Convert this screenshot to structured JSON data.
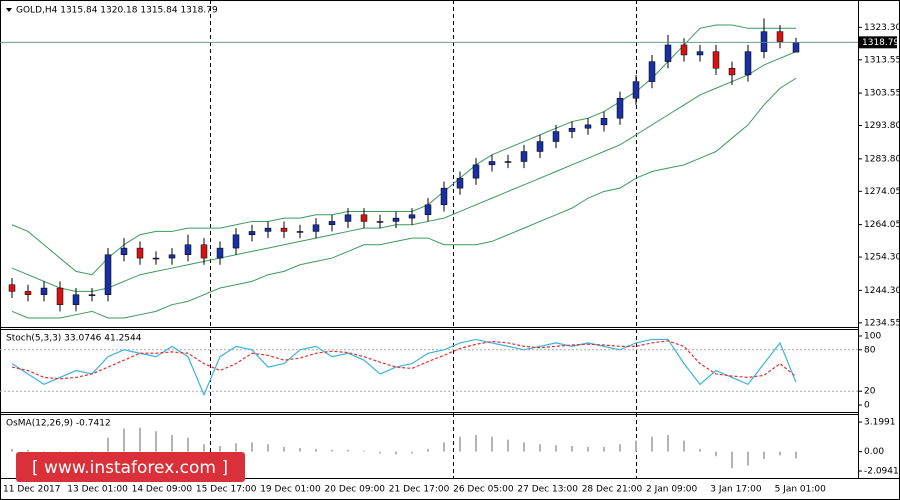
{
  "chart_data": [
    {
      "type": "candlestick",
      "title": "GOLD,H4  1315.84 1320.18 1315.84 1318.79",
      "open": [
        1246,
        1244,
        1243,
        1245,
        1240,
        1243,
        1243,
        1255,
        1257,
        1254,
        1254,
        1255,
        1258,
        1254,
        1257,
        1261,
        1262,
        1263,
        1262,
        1262,
        1264,
        1265,
        1267,
        1265,
        1265,
        1266,
        1267,
        1270,
        1275,
        1278,
        1282,
        1283,
        1283,
        1286,
        1289,
        1292,
        1293,
        1294,
        1296,
        1302,
        1307,
        1313,
        1318,
        1315,
        1316,
        1311,
        1309,
        1316,
        1322,
        1315.84
      ],
      "high": [
        1248,
        1246,
        1247,
        1247,
        1245,
        1245,
        1257,
        1260,
        1259,
        1256,
        1257,
        1261,
        1260,
        1259,
        1263,
        1264,
        1265,
        1265,
        1264,
        1266,
        1267,
        1269,
        1269,
        1267,
        1268,
        1269,
        1272,
        1277,
        1280,
        1284,
        1285,
        1285,
        1288,
        1291,
        1294,
        1295,
        1296,
        1298,
        1304,
        1309,
        1315,
        1321,
        1320,
        1318,
        1318,
        1313,
        1318,
        1326,
        1324,
        1320.18
      ],
      "low": [
        1242,
        1241,
        1241,
        1238,
        1238,
        1241,
        1241,
        1253,
        1252,
        1252,
        1252,
        1253,
        1252,
        1252,
        1255,
        1259,
        1260,
        1260,
        1260,
        1260,
        1262,
        1263,
        1263,
        1263,
        1263,
        1264,
        1265,
        1268,
        1273,
        1276,
        1280,
        1281,
        1281,
        1284,
        1287,
        1290,
        1291,
        1292,
        1294,
        1300,
        1305,
        1311,
        1313,
        1313,
        1309,
        1306,
        1307,
        1314,
        1317,
        1315.84
      ],
      "close": [
        1244,
        1243,
        1245,
        1240,
        1243,
        1243,
        1255,
        1257,
        1254,
        1254,
        1255,
        1258,
        1254,
        1257,
        1261,
        1262,
        1263,
        1262,
        1262,
        1264,
        1265,
        1267,
        1265,
        1265,
        1266,
        1267,
        1270,
        1275,
        1278,
        1282,
        1283,
        1283,
        1286,
        1289,
        1292,
        1293,
        1294,
        1296,
        1302,
        1307,
        1313,
        1318,
        1315,
        1316,
        1311,
        1309,
        1316,
        1322,
        1319,
        1318.79
      ],
      "up_color": "#1a2fa0",
      "down_color": "#d41414",
      "bands": {
        "color": "#3c9a5c",
        "upper": [
          1264,
          1262,
          1258,
          1254,
          1250,
          1249,
          1254,
          1258,
          1261,
          1262,
          1262,
          1263,
          1263,
          1263,
          1264,
          1265,
          1265,
          1266,
          1266,
          1267,
          1267,
          1268,
          1268,
          1268,
          1268,
          1268,
          1270,
          1274,
          1278,
          1282,
          1285,
          1287,
          1289,
          1291,
          1293,
          1295,
          1296,
          1298,
          1301,
          1304,
          1308,
          1313,
          1318,
          1323,
          1324,
          1324,
          1323,
          1323,
          1323,
          1323
        ],
        "middle": [
          1251,
          1249,
          1247,
          1245,
          1244,
          1244,
          1245,
          1247,
          1249,
          1250,
          1251,
          1252,
          1253,
          1254,
          1255,
          1256,
          1257,
          1258,
          1259,
          1260,
          1261,
          1262,
          1263,
          1263,
          1264,
          1264,
          1265,
          1266,
          1268,
          1270,
          1272,
          1274,
          1276,
          1278,
          1280,
          1282,
          1284,
          1286,
          1288,
          1291,
          1294,
          1297,
          1300,
          1303,
          1305,
          1307,
          1309,
          1312,
          1314,
          1316
        ],
        "lower": [
          1238,
          1236,
          1236,
          1236,
          1237,
          1238,
          1236,
          1236,
          1237,
          1238,
          1240,
          1241,
          1243,
          1245,
          1246,
          1247,
          1249,
          1250,
          1252,
          1253,
          1254,
          1256,
          1258,
          1258,
          1259,
          1260,
          1260,
          1258,
          1258,
          1258,
          1259,
          1261,
          1263,
          1265,
          1267,
          1269,
          1272,
          1274,
          1275,
          1278,
          1280,
          1281,
          1282,
          1284,
          1286,
          1290,
          1294,
          1300,
          1305,
          1308
        ]
      },
      "current_price": 1318.79,
      "ylim": [
        1233.3,
        1330.0
      ],
      "yticks": [
        {
          "value": 1323.3,
          "label": "1323.30"
        },
        1313.55,
        1303.55,
        {
          "value": 1293.8,
          "label": "1293.80"
        },
        {
          "value": 1283.8,
          "label": "1283.80"
        },
        1274.05,
        1264.05,
        {
          "value": 1254.3,
          "label": "1254.30"
        },
        {
          "value": 1244.3,
          "label": "1244.30"
        },
        1234.55
      ]
    },
    {
      "type": "line",
      "title": "Stoch(5,3,3) 33.0746 41.2544",
      "series": [
        {
          "color": "#3cb4dc",
          "dashed": false,
          "values": [
            60,
            45,
            30,
            40,
            50,
            45,
            70,
            80,
            75,
            70,
            85,
            70,
            15,
            70,
            85,
            80,
            55,
            60,
            80,
            85,
            70,
            75,
            65,
            45,
            55,
            60,
            75,
            80,
            90,
            95,
            90,
            85,
            80,
            85,
            90,
            85,
            90,
            85,
            80,
            90,
            95,
            95,
            60,
            30,
            50,
            40,
            30,
            60,
            90,
            33.0746
          ]
        },
        {
          "color": "#e03030",
          "dashed": true,
          "values": [
            55,
            50,
            40,
            38,
            40,
            45,
            55,
            65,
            75,
            75,
            77,
            75,
            60,
            50,
            60,
            75,
            72,
            65,
            68,
            75,
            78,
            76,
            70,
            62,
            55,
            53,
            63,
            72,
            82,
            88,
            92,
            90,
            85,
            83,
            85,
            87,
            88,
            87,
            85,
            85,
            90,
            93,
            85,
            60,
            45,
            42,
            40,
            43,
            60,
            41.2544
          ]
        }
      ],
      "ylim": [
        -10.1,
        108.7
      ],
      "yticks": [
        100,
        80,
        20,
        0
      ],
      "levels": [
        80,
        20
      ]
    },
    {
      "type": "bar",
      "title": "OsMA(12,26,9) -0.7412",
      "color": "#b4b4b4",
      "values": [
        0.3,
        0.2,
        -0.3,
        -0.5,
        -0.4,
        -0.2,
        1.5,
        2.5,
        2.6,
        2.2,
        1.8,
        1.5,
        0.8,
        0.6,
        0.9,
        1.0,
        0.8,
        0.5,
        0.4,
        0.3,
        0.2,
        0.2,
        0.1,
        -0.2,
        -0.3,
        -0.2,
        0.3,
        1.0,
        1.6,
        1.8,
        1.6,
        1.3,
        1.0,
        0.8,
        0.7,
        0.6,
        0.5,
        0.5,
        0.8,
        1.2,
        1.6,
        1.8,
        1.2,
        0.3,
        -0.5,
        -1.8,
        -1.5,
        -0.8,
        -0.4,
        -0.7412
      ],
      "ylim": [
        -2.74,
        3.85
      ],
      "yticks": [
        3.1991,
        {
          "value": 0,
          "label": "0.00"
        },
        -2.0941
      ]
    }
  ],
  "time_axis": {
    "labels": [
      "11 Dec 2017",
      "13 Dec 01:00",
      "14 Dec 09:00",
      "15 Dec 17:00",
      "19 Dec 01:00",
      "20 Dec 09:00",
      "21 Dec 17:00",
      "26 Dec 05:00",
      "27 Dec 13:00",
      "28 Dec 21:00",
      "2 Jan 09:00",
      "3 Jan 17:00",
      "5 Jan 01:00"
    ]
  },
  "watermark": "[ www.instaforex.com ]"
}
